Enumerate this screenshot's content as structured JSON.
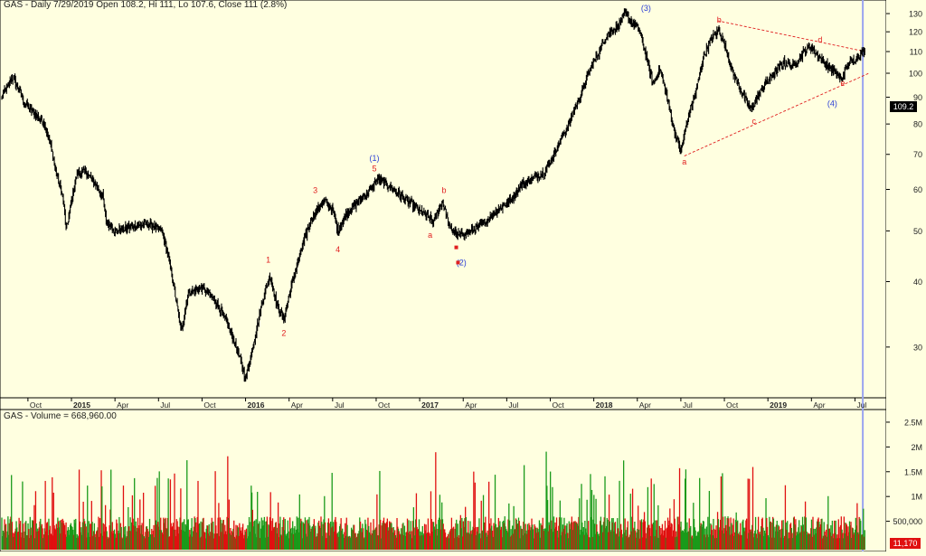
{
  "chart_data": [
    {
      "type": "ohlc",
      "title": "GAS - Daily 7/29/2019 Open 108.2, Hi 111, Lo 107.6, Close 111 (2.8%)",
      "ylim": [
        24,
        138
      ],
      "y_ticks": [
        "30",
        "40",
        "50",
        "60",
        "70",
        "80",
        "90",
        "100",
        "110",
        "120",
        "130"
      ],
      "last_price_label": "109.2",
      "x_ticks": [
        {
          "label": "Oct",
          "t": 2014.75
        },
        {
          "label": "2015",
          "t": 2015.0,
          "bold": true
        },
        {
          "label": "Apr",
          "t": 2015.25
        },
        {
          "label": "Jul",
          "t": 2015.5
        },
        {
          "label": "Oct",
          "t": 2015.75
        },
        {
          "label": "2016",
          "t": 2016.0,
          "bold": true
        },
        {
          "label": "Apr",
          "t": 2016.25
        },
        {
          "label": "Jul",
          "t": 2016.5
        },
        {
          "label": "Oct",
          "t": 2016.75
        },
        {
          "label": "2017",
          "t": 2017.0,
          "bold": true
        },
        {
          "label": "Apr",
          "t": 2017.25
        },
        {
          "label": "Jul",
          "t": 2017.5
        },
        {
          "label": "Oct",
          "t": 2017.75
        },
        {
          "label": "2018",
          "t": 2018.0,
          "bold": true
        },
        {
          "label": "Apr",
          "t": 2018.25
        },
        {
          "label": "Jul",
          "t": 2018.5
        },
        {
          "label": "Oct",
          "t": 2018.75
        },
        {
          "label": "2019",
          "t": 2019.0,
          "bold": true
        },
        {
          "label": "Apr",
          "t": 2019.25
        },
        {
          "label": "Jul",
          "t": 2019.5
        }
      ],
      "price_path": [
        [
          2014.6,
          90
        ],
        [
          2014.63,
          94
        ],
        [
          2014.66,
          98
        ],
        [
          2014.7,
          93
        ],
        [
          2014.73,
          88
        ],
        [
          2014.78,
          84
        ],
        [
          2014.84,
          81
        ],
        [
          2014.88,
          73
        ],
        [
          2014.91,
          65
        ],
        [
          2014.95,
          58
        ],
        [
          2014.97,
          50
        ],
        [
          2015.0,
          57
        ],
        [
          2015.03,
          64
        ],
        [
          2015.08,
          65
        ],
        [
          2015.13,
          62
        ],
        [
          2015.18,
          58
        ],
        [
          2015.2,
          52
        ],
        [
          2015.25,
          50
        ],
        [
          2015.35,
          51
        ],
        [
          2015.45,
          51.5
        ],
        [
          2015.52,
          50
        ],
        [
          2015.56,
          44
        ],
        [
          2015.6,
          37
        ],
        [
          2015.63,
          32
        ],
        [
          2015.67,
          38
        ],
        [
          2015.75,
          39
        ],
        [
          2015.82,
          37
        ],
        [
          2015.9,
          33
        ],
        [
          2015.96,
          29
        ],
        [
          2016.0,
          26
        ],
        [
          2016.05,
          31
        ],
        [
          2016.1,
          37
        ],
        [
          2016.14,
          41
        ],
        [
          2016.18,
          36
        ],
        [
          2016.22,
          34
        ],
        [
          2016.27,
          40
        ],
        [
          2016.32,
          46
        ],
        [
          2016.38,
          53
        ],
        [
          2016.45,
          57
        ],
        [
          2016.5,
          55
        ],
        [
          2016.53,
          50
        ],
        [
          2016.58,
          54
        ],
        [
          2016.65,
          57
        ],
        [
          2016.72,
          60
        ],
        [
          2016.76,
          63
        ],
        [
          2016.82,
          61
        ],
        [
          2016.9,
          58
        ],
        [
          2016.96,
          56
        ],
        [
          2017.02,
          54
        ],
        [
          2017.08,
          52
        ],
        [
          2017.13,
          57
        ],
        [
          2017.17,
          51
        ],
        [
          2017.22,
          49
        ],
        [
          2017.3,
          50
        ],
        [
          2017.38,
          52
        ],
        [
          2017.45,
          55
        ],
        [
          2017.52,
          57
        ],
        [
          2017.58,
          61
        ],
        [
          2017.65,
          63
        ],
        [
          2017.72,
          65
        ],
        [
          2017.78,
          71
        ],
        [
          2017.85,
          79
        ],
        [
          2017.92,
          90
        ],
        [
          2017.98,
          102
        ],
        [
          2018.03,
          110
        ],
        [
          2018.08,
          119
        ],
        [
          2018.14,
          123
        ],
        [
          2018.18,
          130
        ],
        [
          2018.22,
          125
        ],
        [
          2018.26,
          121
        ],
        [
          2018.3,
          108
        ],
        [
          2018.34,
          95
        ],
        [
          2018.38,
          102
        ],
        [
          2018.42,
          90
        ],
        [
          2018.46,
          78
        ],
        [
          2018.5,
          71
        ],
        [
          2018.54,
          82
        ],
        [
          2018.59,
          93
        ],
        [
          2018.63,
          108
        ],
        [
          2018.68,
          117
        ],
        [
          2018.72,
          121
        ],
        [
          2018.76,
          111
        ],
        [
          2018.8,
          100
        ],
        [
          2018.85,
          92
        ],
        [
          2018.9,
          85
        ],
        [
          2018.94,
          90
        ],
        [
          2018.99,
          96
        ],
        [
          2019.04,
          100
        ],
        [
          2019.09,
          105
        ],
        [
          2019.14,
          103
        ],
        [
          2019.19,
          108
        ],
        [
          2019.24,
          113
        ],
        [
          2019.28,
          109
        ],
        [
          2019.33,
          104
        ],
        [
          2019.38,
          101
        ],
        [
          2019.42,
          97
        ],
        [
          2019.46,
          104
        ],
        [
          2019.51,
          107
        ],
        [
          2019.56,
          111
        ]
      ],
      "wave_labels": [
        {
          "text": "(1)",
          "t": 2016.74,
          "y": 68,
          "color": "#2b3fd6"
        },
        {
          "text": "5",
          "t": 2016.74,
          "y": 65,
          "color": "#e02020"
        },
        {
          "text": "1",
          "t": 2016.13,
          "y": 43.5,
          "color": "#e02020"
        },
        {
          "text": "2",
          "t": 2016.22,
          "y": 31.5,
          "color": "#e02020"
        },
        {
          "text": "3",
          "t": 2016.4,
          "y": 59,
          "color": "#e02020"
        },
        {
          "text": "4",
          "t": 2016.53,
          "y": 45.5,
          "color": "#e02020"
        },
        {
          "text": "a",
          "t": 2017.06,
          "y": 48.5,
          "color": "#e02020"
        },
        {
          "text": "b",
          "t": 2017.14,
          "y": 59,
          "color": "#e02020"
        },
        {
          "text": "(2)",
          "t": 2017.24,
          "y": 43,
          "color": "#2b3fd6"
        },
        {
          "text": "(3)",
          "t": 2018.3,
          "y": 131.5,
          "color": "#2b3fd6"
        },
        {
          "text": "a",
          "t": 2018.52,
          "y": 67,
          "color": "#e02020"
        },
        {
          "text": "b",
          "t": 2018.72,
          "y": 125,
          "color": "#e02020"
        },
        {
          "text": "c",
          "t": 2018.92,
          "y": 80,
          "color": "#e02020"
        },
        {
          "text": "d",
          "t": 2019.3,
          "y": 114.5,
          "color": "#e02020"
        },
        {
          "text": "e",
          "t": 2019.43,
          "y": 94.5,
          "color": "#e02020"
        },
        {
          "text": "(4)",
          "t": 2019.37,
          "y": 86.5,
          "color": "#2b3fd6"
        }
      ],
      "markers": [
        {
          "t": 2017.21,
          "y": 46.5,
          "color": "#e02020"
        },
        {
          "t": 2017.22,
          "y": 43.5,
          "color": "#e02020"
        }
      ],
      "trendlines": [
        {
          "from": [
            2018.52,
            69.5
          ],
          "to": [
            2019.58,
            100
          ],
          "color": "#e02020"
        },
        {
          "from": [
            2018.71,
            126
          ],
          "to": [
            2019.56,
            110
          ],
          "color": "#e02020"
        }
      ],
      "cursor_t": 2019.545
    },
    {
      "type": "bar",
      "title": "GAS - Volume = 668,960.00",
      "ylim": [
        0,
        2700000
      ],
      "y_ticks": [
        "500,000",
        "1M",
        "1.5M",
        "2M",
        "2.5M"
      ],
      "last_volume_label": "11,170",
      "up_color": "#1a9a1a",
      "down_color": "#e01010"
    }
  ]
}
